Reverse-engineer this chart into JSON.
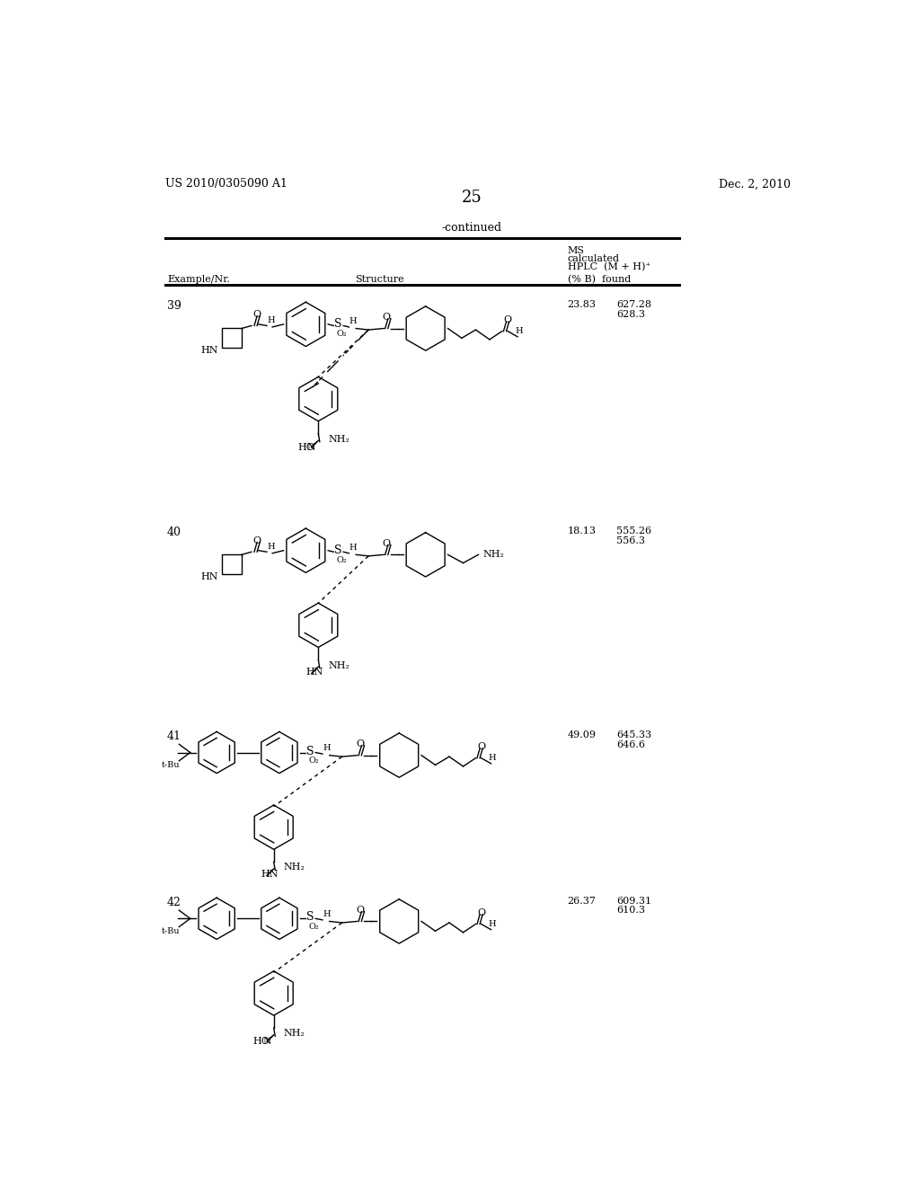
{
  "page_number": "25",
  "patent_number": "US 2010/0305090 A1",
  "patent_date": "Dec. 2, 2010",
  "continued_label": "-continued",
  "header_col1": "Example/Nr.",
  "header_col2": "Structure",
  "header_col3_line1": "MS",
  "header_col3_line2": "calculated",
  "header_col3_line3": "HPLC  (M + H)⁺",
  "header_col3_line4": "(% B)  found",
  "entries": [
    {
      "number": "39",
      "hplc": "23.83",
      "ms_calc": "627.28",
      "ms_found": "628.3"
    },
    {
      "number": "40",
      "hplc": "18.13",
      "ms_calc": "555.26",
      "ms_found": "556.3"
    },
    {
      "number": "41",
      "hplc": "49.09",
      "ms_calc": "645.33",
      "ms_found": "646.6"
    },
    {
      "number": "42",
      "hplc": "26.37",
      "ms_calc": "609.31",
      "ms_found": "610.3"
    }
  ],
  "bg_color": "#ffffff",
  "text_color": "#000000",
  "line_color": "#000000"
}
